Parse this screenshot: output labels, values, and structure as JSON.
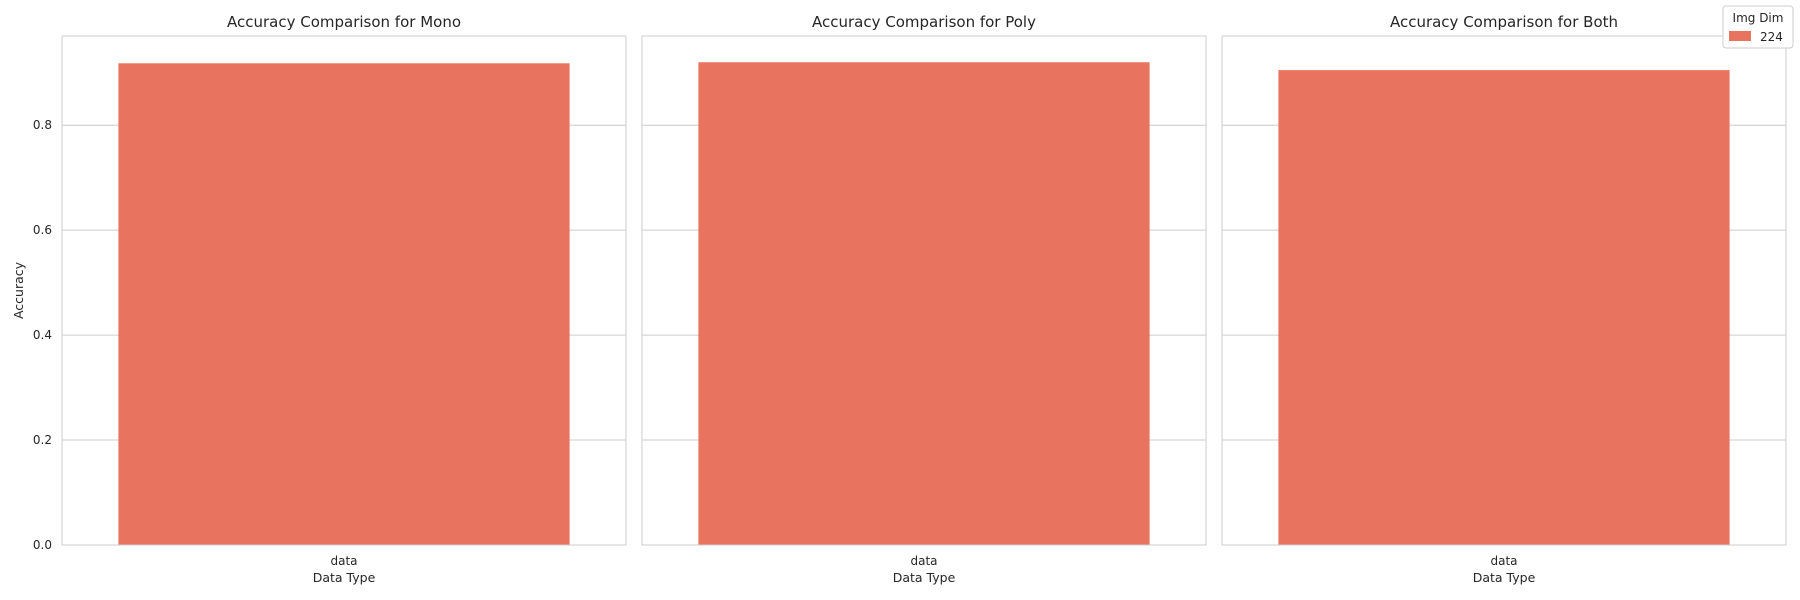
{
  "legend": {
    "title": "Img Dim",
    "entries": [
      {
        "label": "224",
        "color": "#E8735F"
      }
    ]
  },
  "chart_data": [
    {
      "type": "bar",
      "title": "Accuracy Comparison for Mono",
      "xlabel": "Data Type",
      "ylabel": "Accuracy",
      "categories": [
        "data"
      ],
      "series": [
        {
          "name": "224",
          "values": [
            0.918
          ],
          "color": "#E8735F"
        }
      ],
      "ylim": [
        0,
        0.97
      ],
      "yticks": [
        "0.0",
        "0.2",
        "0.4",
        "0.6",
        "0.8"
      ],
      "grid": true
    },
    {
      "type": "bar",
      "title": "Accuracy Comparison for Poly",
      "xlabel": "Data Type",
      "ylabel": "",
      "categories": [
        "data"
      ],
      "series": [
        {
          "name": "224",
          "values": [
            0.92
          ],
          "color": "#E8735F"
        }
      ],
      "ylim": [
        0,
        0.97
      ],
      "yticks": [],
      "grid": true
    },
    {
      "type": "bar",
      "title": "Accuracy Comparison for Both",
      "xlabel": "Data Type",
      "ylabel": "",
      "categories": [
        "data"
      ],
      "series": [
        {
          "name": "224",
          "values": [
            0.905
          ],
          "color": "#E8735F"
        }
      ],
      "ylim": [
        0,
        0.97
      ],
      "yticks": [],
      "grid": true
    }
  ]
}
